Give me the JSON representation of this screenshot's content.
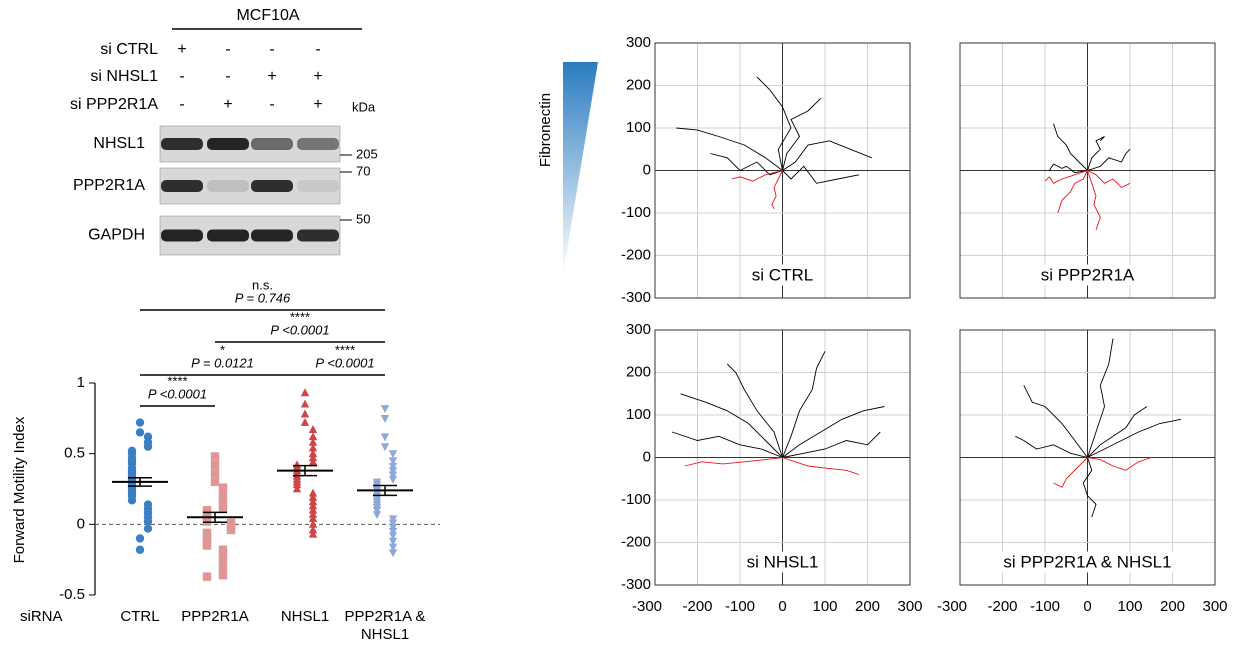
{
  "figure": {
    "blot": {
      "title": "MCF10A",
      "treatments": [
        {
          "label": "si CTRL",
          "lanes": [
            "+",
            "-",
            "-",
            "-"
          ]
        },
        {
          "label": "si NHSL1",
          "lanes": [
            "-",
            "-",
            "+",
            "+"
          ]
        },
        {
          "label": "si PPP2R1A",
          "lanes": [
            "-",
            "+",
            "-",
            "+"
          ]
        }
      ],
      "unit": "kDa",
      "proteins": [
        "NHSL1",
        "PPP2R1A",
        "GAPDH"
      ],
      "markers": [
        205,
        70,
        50
      ]
    },
    "gradient_label": "Fibronectin"
  },
  "chart_data": [
    {
      "type": "strip",
      "ylabel": "Forward Motility Index",
      "xlabel": "siRNA",
      "ylim": [
        -0.5,
        1
      ],
      "yticks": [
        -0.5,
        0,
        0.5,
        1
      ],
      "zero_line": true,
      "categories": [
        "CTRL",
        "PPP2R1A",
        "NHSL1",
        "PPP2R1A & NHSL1"
      ],
      "series": [
        {
          "color": "#3a7ec3",
          "marker": "circle",
          "mean": 0.3,
          "error": 0.03,
          "values": [
            0.72,
            0.65,
            0.62,
            0.58,
            0.55,
            0.52,
            0.5,
            0.47,
            0.45,
            0.43,
            0.4,
            0.38,
            0.36,
            0.34,
            0.32,
            0.3,
            0.28,
            0.26,
            0.24,
            0.22,
            0.2,
            0.17,
            0.14,
            0.11,
            0.08,
            0.05,
            0.02,
            -0.03,
            -0.1,
            -0.18
          ]
        },
        {
          "color": "#de9696",
          "marker": "square",
          "mean": 0.05,
          "error": 0.035,
          "values": [
            0.48,
            0.42,
            0.36,
            0.3,
            0.26,
            0.22,
            0.18,
            0.15,
            0.12,
            0.1,
            0.08,
            0.06,
            0.04,
            0.02,
            0.01,
            0,
            -0.02,
            -0.04,
            -0.06,
            -0.08,
            -0.1,
            -0.12,
            -0.15,
            -0.18,
            -0.21,
            -0.25,
            -0.29,
            -0.33,
            -0.36,
            -0.37
          ]
        },
        {
          "color": "#cf4545",
          "marker": "triangle-up",
          "mean": 0.38,
          "error": 0.035,
          "values": [
            0.93,
            0.85,
            0.78,
            0.72,
            0.67,
            0.62,
            0.58,
            0.54,
            0.5,
            0.47,
            0.44,
            0.42,
            0.4,
            0.38,
            0.36,
            0.34,
            0.32,
            0.3,
            0.28,
            0.25,
            0.22,
            0.19,
            0.16,
            0.13,
            0.1,
            0.07,
            0.04,
            0,
            -0.04,
            -0.07
          ]
        },
        {
          "color": "#8ea8d8",
          "marker": "triangle-down",
          "mean": 0.24,
          "error": 0.035,
          "values": [
            0.82,
            0.75,
            0.62,
            0.55,
            0.5,
            0.45,
            0.41,
            0.38,
            0.35,
            0.32,
            0.3,
            0.28,
            0.26,
            0.24,
            0.22,
            0.2,
            0.18,
            0.16,
            0.14,
            0.12,
            0.1,
            0.07,
            0.04,
            0.01,
            -0.02,
            -0.05,
            -0.08,
            -0.12,
            -0.16,
            -0.2
          ]
        }
      ],
      "comparisons": [
        {
          "groups": [
            "CTRL",
            "PPP2R1A"
          ],
          "stars": "****",
          "p": "P <0.0001"
        },
        {
          "groups": [
            "CTRL",
            "NHSL1"
          ],
          "stars": "*",
          "p": "P = 0.0121"
        },
        {
          "groups": [
            "NHSL1",
            "PPP2R1A & NHSL1"
          ],
          "stars": "****",
          "p": "P <0.0001"
        },
        {
          "groups": [
            "PPP2R1A",
            "PPP2R1A & NHSL1"
          ],
          "stars": "****",
          "p": "P <0.0001"
        },
        {
          "groups": [
            "CTRL",
            "PPP2R1A & NHSL1"
          ],
          "stars": "n.s.",
          "p": "P = 0.746"
        }
      ]
    },
    {
      "type": "tracks",
      "xlim": [
        -300,
        300
      ],
      "ylim": [
        -300,
        300
      ],
      "xticks": [
        -300,
        -200,
        -100,
        0,
        100,
        200,
        300
      ],
      "yticks": [
        -300,
        -200,
        -100,
        0,
        100,
        200,
        300
      ],
      "grid": true,
      "panels": [
        {
          "title": "si CTRL",
          "tracks": [
            {
              "color": "#000000",
              "x": [
                0,
                -40,
                -90,
                -150,
                -200,
                -250
              ],
              "y": [
                0,
                30,
                60,
                80,
                95,
                100
              ]
            },
            {
              "color": "#000000",
              "x": [
                0,
                30,
                60,
                110,
                160,
                210
              ],
              "y": [
                0,
                20,
                60,
                70,
                50,
                30
              ]
            },
            {
              "color": "#000000",
              "x": [
                0,
                -10,
                20,
                0,
                -30,
                -60
              ],
              "y": [
                0,
                50,
                100,
                150,
                190,
                220
              ]
            },
            {
              "color": "#000000",
              "x": [
                0,
                20,
                50,
                80,
                130,
                180
              ],
              "y": [
                0,
                -20,
                10,
                -30,
                -20,
                -10
              ]
            },
            {
              "color": "#000000",
              "x": [
                0,
                -30,
                -60,
                -100,
                -130,
                -170
              ],
              "y": [
                0,
                -10,
                20,
                0,
                30,
                40
              ]
            },
            {
              "color": "#000000",
              "x": [
                0,
                10,
                40,
                20,
                60,
                90
              ],
              "y": [
                0,
                40,
                80,
                120,
                140,
                170
              ]
            },
            {
              "color": "#e8141b",
              "x": [
                0,
                -20,
                -40,
                -70,
                -100,
                -120
              ],
              "y": [
                0,
                -5,
                -10,
                -25,
                -15,
                -20
              ]
            },
            {
              "color": "#e8141b",
              "x": [
                0,
                -10,
                -20,
                -15,
                -25,
                -20
              ],
              "y": [
                0,
                -20,
                -40,
                -60,
                -80,
                -90
              ]
            }
          ]
        },
        {
          "title": "si PPP2R1A",
          "tracks": [
            {
              "color": "#000000",
              "x": [
                0,
                -20,
                -40,
                -50,
                -70,
                -80
              ],
              "y": [
                0,
                20,
                40,
                60,
                80,
                110
              ]
            },
            {
              "color": "#000000",
              "x": [
                0,
                30,
                50,
                80,
                90,
                100
              ],
              "y": [
                0,
                10,
                30,
                20,
                40,
                50
              ]
            },
            {
              "color": "#000000",
              "x": [
                0,
                -30,
                -50,
                -60,
                -80,
                -90
              ],
              "y": [
                0,
                -5,
                10,
                5,
                15,
                0
              ]
            },
            {
              "color": "#000000",
              "x": [
                0,
                10,
                30,
                20,
                40,
                30
              ],
              "y": [
                0,
                30,
                50,
                70,
                80,
                70
              ]
            },
            {
              "color": "#e8141b",
              "x": [
                0,
                20,
                40,
                60,
                80,
                100
              ],
              "y": [
                0,
                -10,
                -30,
                -20,
                -40,
                -30
              ]
            },
            {
              "color": "#e8141b",
              "x": [
                0,
                -10,
                -30,
                -40,
                -60,
                -70
              ],
              "y": [
                0,
                -20,
                -30,
                -50,
                -70,
                -100
              ]
            },
            {
              "color": "#e8141b",
              "x": [
                0,
                10,
                20,
                15,
                30,
                20
              ],
              "y": [
                0,
                -30,
                -60,
                -80,
                -110,
                -140
              ]
            },
            {
              "color": "#e8141b",
              "x": [
                0,
                -30,
                -60,
                -80,
                -90,
                -100
              ],
              "y": [
                0,
                -10,
                -20,
                -30,
                -15,
                -25
              ]
            }
          ]
        },
        {
          "title": "si NHSL1",
          "tracks": [
            {
              "color": "#000000",
              "x": [
                0,
                -40,
                -80,
                -130,
                -180,
                -240
              ],
              "y": [
                0,
                40,
                80,
                110,
                130,
                150
              ]
            },
            {
              "color": "#000000",
              "x": [
                0,
                20,
                40,
                70,
                80,
                100
              ],
              "y": [
                0,
                50,
                110,
                160,
                210,
                250
              ]
            },
            {
              "color": "#000000",
              "x": [
                0,
                40,
                90,
                140,
                190,
                240
              ],
              "y": [
                0,
                30,
                60,
                90,
                110,
                120
              ]
            },
            {
              "color": "#000000",
              "x": [
                0,
                -20,
                -60,
                -90,
                -110,
                -130
              ],
              "y": [
                0,
                60,
                110,
                160,
                200,
                220
              ]
            },
            {
              "color": "#000000",
              "x": [
                0,
                50,
                100,
                150,
                200,
                230
              ],
              "y": [
                0,
                10,
                20,
                40,
                30,
                60
              ]
            },
            {
              "color": "#000000",
              "x": [
                0,
                -50,
                -100,
                -150,
                -200,
                -260
              ],
              "y": [
                0,
                20,
                30,
                50,
                40,
                60
              ]
            },
            {
              "color": "#e8141b",
              "x": [
                0,
                -40,
                -90,
                -140,
                -190,
                -230
              ],
              "y": [
                0,
                -5,
                -10,
                -15,
                -10,
                -20
              ]
            },
            {
              "color": "#e8141b",
              "x": [
                0,
                30,
                60,
                100,
                150,
                180
              ],
              "y": [
                0,
                -10,
                -20,
                -25,
                -30,
                -40
              ]
            }
          ]
        },
        {
          "title": "si PPP2R1A & NHSL1",
          "tracks": [
            {
              "color": "#000000",
              "x": [
                0,
                -30,
                -60,
                -100,
                -130,
                -150
              ],
              "y": [
                0,
                40,
                80,
                120,
                130,
                170
              ]
            },
            {
              "color": "#000000",
              "x": [
                0,
                20,
                40,
                30,
                50,
                60
              ],
              "y": [
                0,
                60,
                120,
                170,
                220,
                280
              ]
            },
            {
              "color": "#000000",
              "x": [
                0,
                40,
                80,
                120,
                170,
                220
              ],
              "y": [
                0,
                20,
                40,
                60,
                80,
                90
              ]
            },
            {
              "color": "#000000",
              "x": [
                0,
                -40,
                -80,
                -120,
                -150,
                -170
              ],
              "y": [
                0,
                10,
                30,
                20,
                40,
                50
              ]
            },
            {
              "color": "#000000",
              "x": [
                0,
                10,
                -10,
                0,
                20,
                10
              ],
              "y": [
                0,
                -30,
                -60,
                -90,
                -110,
                -140
              ]
            },
            {
              "color": "#000000",
              "x": [
                0,
                30,
                60,
                90,
                110,
                140
              ],
              "y": [
                0,
                30,
                50,
                70,
                100,
                120
              ]
            },
            {
              "color": "#e8141b",
              "x": [
                0,
                30,
                60,
                90,
                120,
                150
              ],
              "y": [
                0,
                -5,
                -20,
                -30,
                -10,
                0
              ]
            },
            {
              "color": "#e8141b",
              "x": [
                0,
                -20,
                -40,
                -50,
                -60,
                -80
              ],
              "y": [
                0,
                -20,
                -40,
                -50,
                -70,
                -60
              ]
            }
          ]
        }
      ]
    }
  ]
}
